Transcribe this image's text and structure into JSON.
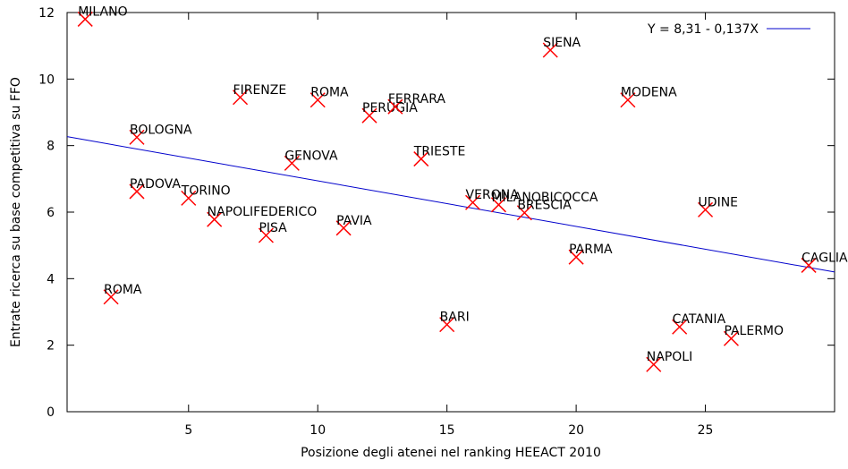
{
  "chart_data": {
    "type": "scatter",
    "xlabel": "Posizione degli atenei nel ranking HEEACT 2010",
    "ylabel": "Entrate ricerca su base competitiva su FFO",
    "x": [
      1,
      2,
      3,
      3,
      5,
      6,
      7,
      8,
      9,
      10,
      11,
      12,
      13,
      14,
      15,
      16,
      17,
      18,
      19,
      20,
      22,
      23,
      24,
      25,
      26,
      29
    ],
    "values": [
      11.8,
      3.45,
      8.25,
      6.62,
      6.42,
      5.78,
      9.45,
      5.3,
      7.47,
      9.37,
      5.52,
      8.9,
      9.17,
      7.6,
      2.62,
      6.29,
      6.22,
      5.98,
      10.87,
      4.65,
      9.37,
      1.42,
      2.55,
      6.07,
      2.2,
      4.4
    ],
    "labels": [
      "MILANO",
      "ROMA",
      "BOLOGNA",
      "PADOVA",
      "TORINO",
      "NAPOLIFEDERICO",
      "FIRENZE",
      "PISA",
      "GENOVA",
      "ROMA",
      "PAVIA",
      "PERUGIA",
      "FERRARA",
      "TRIESTE",
      "BARI",
      "VERONA",
      "MILANOBICOCCA",
      "BRESCIA",
      "SIENA",
      "PARMA",
      "MODENA",
      "NAPOLI",
      "CATANIA",
      "UDINE",
      "PALERMO",
      "CAGLIARI"
    ],
    "color": "#ff0000",
    "fit": {
      "name": "Y = 8,31 - 0,137X",
      "intercept": 8.31,
      "slope": -0.137,
      "color": "#0000cc"
    },
    "xlim": [
      0.3,
      30
    ],
    "ylim": [
      0,
      12
    ],
    "xticks": [
      5,
      10,
      15,
      20,
      25
    ],
    "yticks": [
      0,
      2,
      4,
      6,
      8,
      10,
      12
    ]
  }
}
